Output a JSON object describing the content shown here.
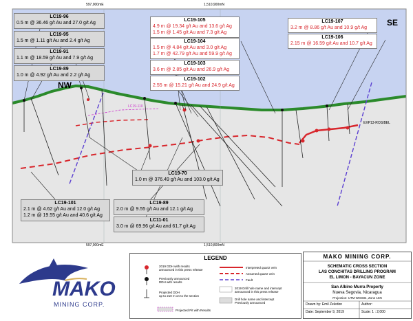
{
  "zones": {
    "nw": "NW",
    "se": "SE"
  },
  "grid": {
    "east_top": "597,000mE",
    "north_top": "1,510,900mN",
    "east_bottom": "597,000mE",
    "north_bottom": "1,510,800mN"
  },
  "boxes": {
    "lc19_96": {
      "title": "LC19-96",
      "line": "0.5 m @ 36.46 g/t Au and 27.0 g/t Ag"
    },
    "lc19_95": {
      "title": "LC19-95",
      "line": "1.5 m @ 1.11 g/t Au and 2.4 g/t Ag"
    },
    "lc19_91": {
      "title": "LC19-91",
      "line": "1.1 m @ 18.59 g/t Au and 7.9 g/t Ag"
    },
    "lc19_89b": {
      "title": "LC19-89",
      "line": "1.0 m @ 4.92 g/t Au and 2.2 g/t Ag"
    },
    "lc19_105": {
      "title": "LC19-105",
      "l1": "4.9 m @ 19.34 g/t Au and 13.6 g/t Ag",
      "l2": "1.5 m @ 1.45 g/t Au and 7.3 g/t Ag"
    },
    "lc19_104": {
      "title": "LC19-104",
      "l1": "1.5 m @ 4.84 g/t Au and 3.0 g/t Ag",
      "l2": "1.7 m @ 42.79 g/t Au and 59.9 g/t Ag"
    },
    "lc19_103": {
      "title": "LC19-103",
      "line": "3.6 m @ 2.85 g/t Au and 26.9 g/t Ag"
    },
    "lc19_102": {
      "title": "LC19-102",
      "line": "2.55 m @ 15.21 g/t Au and 24.9 g/t Ag"
    },
    "lc19_107": {
      "title": "LC19-107",
      "line": "3.2 m @ 8.86 g/t Au and 10.9 g/t Ag"
    },
    "lc19_106": {
      "title": "LC19-106",
      "line": "2.15 m @ 16.59 g/t Au and 10.7 g/t Ag"
    },
    "lc19_70": {
      "title": "LC19-70",
      "line": "1.0 m @ 376.49 g/t Au and 103.0 g/t Ag"
    },
    "lc19_101": {
      "title": "LC19-101",
      "l1": "2.1 m @ 4.62 g/t Au and 12.0 g/t Ag",
      "l2": "1.2 m @ 19.55 g/t Au and 40.6 g/t Ag"
    },
    "lc19_89": {
      "title": "LC19-89",
      "line": "2.0 m @ 9.55 g/t Au and 12.1 g/t Ag"
    },
    "lc11_01": {
      "title": "LC11-01",
      "line": "3.0 m @ 69.96 g/t Au and 61.7 g/t Ag"
    }
  },
  "section_labels": {
    "exp": "EXP13-ROSIBEL",
    "lc19_110": "LC19-110"
  },
  "legend": {
    "title": "LEGEND",
    "i1": "2019 DDH with results",
    "i1b": "announced in this press release",
    "i2": "Previously announced",
    "i2b": "DDH with results",
    "i3": "Projected DDH",
    "i3b": "up to 210 m on to the section",
    "i4": "Projected Pit with Results",
    "i5": "Interpreted quartz vein",
    "i6": "Assumed quartz vein",
    "i7": "Fault",
    "i8": "2019 Drill hole name and intercept",
    "i8b": "announced in this press release",
    "i9": "Drill hole name and intercept",
    "i9b": "Previously announced"
  },
  "logo": {
    "name": "MAKO",
    "sub": "MINING CORP."
  },
  "titleblock": {
    "company": "MAKO MINING CORP.",
    "t1": "SCHEMATIC CROSS SECTION",
    "t2": "LAS CONCHITAS DRILLING PROGRAM",
    "t3": "EL LIMON - BAYACUN ZONE",
    "prop": "San Albino Murra Property",
    "loc": "Nueva Segovia, Nicaragua",
    "proj": "Projection: UTM WGS84, Zone 16N",
    "drawn": "Drawn by:  Emil Zeledon",
    "author": "Author:",
    "date": "Date: September 9, 2019",
    "scale": "Scale:  1 : 2,000"
  },
  "colors": {
    "sky": "#c7d3f1",
    "ground": "#e6e6e6",
    "topo": "#2b8a2b",
    "vein": "#d8262c",
    "fault": "#5b3fd1"
  }
}
